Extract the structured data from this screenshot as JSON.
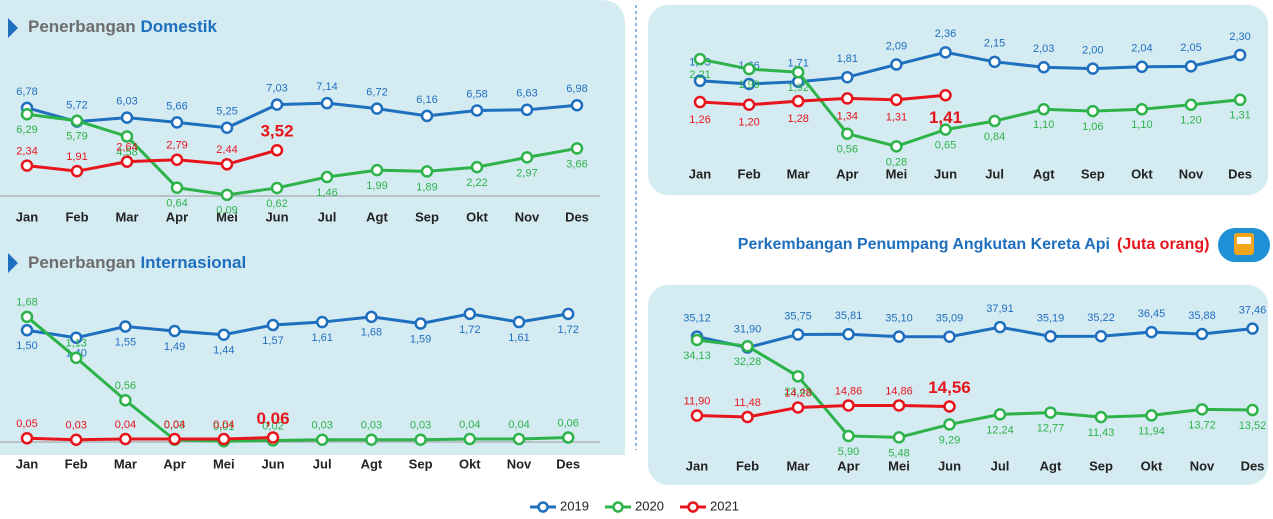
{
  "chart_data": [
    {
      "type": "line",
      "title_parts": [
        "Penerbangan",
        "Domestik"
      ],
      "categories": [
        "Jan",
        "Feb",
        "Mar",
        "Apr",
        "Mei",
        "Jun",
        "Jul",
        "Agt",
        "Sep",
        "Okt",
        "Nov",
        "Des"
      ],
      "ylim": [
        0,
        8
      ],
      "series": [
        {
          "name": "2019",
          "color": "#1f6fbf",
          "values": [
            6.78,
            5.72,
            6.03,
            5.66,
            5.25,
            7.03,
            7.14,
            6.72,
            6.16,
            6.58,
            6.63,
            6.98
          ],
          "value_labels": [
            "6,78",
            "5,72",
            "6,03",
            "5,66",
            "5,25",
            "7,03",
            "7,14",
            "6,72",
            "6,16",
            "6,58",
            "6,63",
            "6,98"
          ]
        },
        {
          "name": "2020",
          "color": "#2db34a",
          "values": [
            6.29,
            5.79,
            4.58,
            0.64,
            0.09,
            0.62,
            1.46,
            1.99,
            1.89,
            2.22,
            2.97,
            3.66
          ],
          "value_labels": [
            "6,29",
            "5,79",
            "4,58",
            "0,64",
            "0,09",
            "0,62",
            "1,46",
            "1,99",
            "1,89",
            "2,22",
            "2,97",
            "3,66"
          ]
        },
        {
          "name": "2021",
          "color": "#e8141c",
          "values": [
            2.34,
            1.91,
            2.64,
            2.79,
            2.44,
            3.52,
            null,
            null,
            null,
            null,
            null,
            null
          ],
          "value_labels": [
            "2,34",
            "1,91",
            "2,64",
            "2,79",
            "2,44",
            "3,52",
            null,
            null,
            null,
            null,
            null,
            null
          ]
        }
      ]
    },
    {
      "type": "line",
      "title_parts": [
        "Penerbangan",
        "Internasional"
      ],
      "categories": [
        "Jan",
        "Feb",
        "Mar",
        "Apr",
        "Mei",
        "Jun",
        "Jul",
        "Agt",
        "Sep",
        "Okt",
        "Nov",
        "Des"
      ],
      "ylim": [
        0,
        2
      ],
      "series": [
        {
          "color": "#1f6fbf",
          "values": [
            1.5,
            1.4,
            1.55,
            1.49,
            1.44,
            1.57,
            1.61,
            1.68,
            1.59,
            1.72,
            1.61,
            1.72
          ],
          "value_labels": [
            "1,50",
            "1,40",
            "1,55",
            "1,49",
            "1,44",
            "1,57",
            "1,61",
            "1,68",
            "1,59",
            "1,72",
            "1,61",
            "1,72"
          ]
        },
        {
          "color": "#2db34a",
          "values": [
            1.68,
            1.13,
            0.56,
            0.03,
            0.01,
            0.02,
            0.03,
            0.03,
            0.03,
            0.04,
            0.04,
            0.06
          ],
          "value_labels": [
            "1,68",
            "1,13",
            "0,56",
            "0,03",
            "0,01",
            "0,02",
            "0,03",
            "0,03",
            "0,03",
            "0,04",
            "0,04",
            "0,06"
          ]
        },
        {
          "color": "#e8141c",
          "values": [
            0.05,
            0.03,
            0.04,
            0.04,
            0.04,
            0.06,
            null,
            null,
            null,
            null,
            null,
            null
          ],
          "value_labels": [
            "0,05",
            "0,03",
            "0,04",
            "0,04",
            "0,04",
            "0,06",
            null,
            null,
            null,
            null,
            null,
            null
          ]
        }
      ]
    },
    {
      "type": "line",
      "categories": [
        "Jan",
        "Feb",
        "Mar",
        "Apr",
        "Mei",
        "Jun",
        "Jul",
        "Agt",
        "Sep",
        "Okt",
        "Nov",
        "Des"
      ],
      "ylim": [
        0,
        2.5
      ],
      "series": [
        {
          "color": "#1f6fbf",
          "values": [
            1.73,
            1.66,
            1.71,
            1.81,
            2.09,
            2.36,
            2.15,
            2.03,
            2.0,
            2.04,
            2.05,
            2.3
          ],
          "value_labels": [
            "1,73",
            "1,66",
            "1,71",
            "1,81",
            "2,09",
            "2,36",
            "2,15",
            "2,03",
            "2,00",
            "2,04",
            "2,05",
            "2,30"
          ]
        },
        {
          "color": "#2db34a",
          "values": [
            2.21,
            1.99,
            1.92,
            0.56,
            0.28,
            0.65,
            0.84,
            1.1,
            1.06,
            1.1,
            1.2,
            1.31
          ],
          "value_labels": [
            "2,21",
            "1,99",
            "1,92",
            "0,56",
            "0,28",
            "0,65",
            "0,84",
            "1,10",
            "1,06",
            "1,10",
            "1,20",
            "1,31"
          ]
        },
        {
          "color": "#e8141c",
          "values": [
            1.26,
            1.2,
            1.28,
            1.34,
            1.31,
            1.41,
            null,
            null,
            null,
            null,
            null,
            null
          ],
          "value_labels": [
            "1,26",
            "1,20",
            "1,28",
            "1,34",
            "1,31",
            "1,41",
            null,
            null,
            null,
            null,
            null,
            null
          ]
        }
      ]
    },
    {
      "type": "line",
      "title": "Perkembangan Penumpang Angkutan Kereta Api",
      "subtitle": "(Juta orang)",
      "categories": [
        "Jan",
        "Feb",
        "Mar",
        "Apr",
        "Mei",
        "Jun",
        "Jul",
        "Agt",
        "Sep",
        "Okt",
        "Nov",
        "Des"
      ],
      "ylim": [
        0,
        40
      ],
      "series": [
        {
          "color": "#1f6fbf",
          "values": [
            35.12,
            31.9,
            35.75,
            35.81,
            35.1,
            35.09,
            37.91,
            35.19,
            35.22,
            36.45,
            35.88,
            37.46
          ],
          "value_labels": [
            "35,12",
            "31,90",
            "35,75",
            "35,81",
            "35,10",
            "35,09",
            "37,91",
            "35,19",
            "35,22",
            "36,45",
            "35,88",
            "37,46"
          ]
        },
        {
          "color": "#2db34a",
          "values": [
            34.13,
            32.28,
            23.43,
            5.9,
            5.48,
            9.29,
            12.24,
            12.77,
            11.43,
            11.94,
            13.72,
            13.52
          ],
          "value_labels": [
            "34,13",
            "32,28",
            "23,43",
            "5,90",
            "5,48",
            "9,29",
            "12,24",
            "12,77",
            "11,43",
            "11,94",
            "13,72",
            "13,52"
          ]
        },
        {
          "color": "#e8141c",
          "values": [
            11.9,
            11.48,
            14.28,
            14.86,
            14.86,
            14.56,
            null,
            null,
            null,
            null,
            null,
            null
          ],
          "value_labels": [
            "11,90",
            "11,48",
            "14,28",
            "14,86",
            "14,86",
            "14,56",
            null,
            null,
            null,
            null,
            null,
            null
          ]
        }
      ]
    }
  ]
}
